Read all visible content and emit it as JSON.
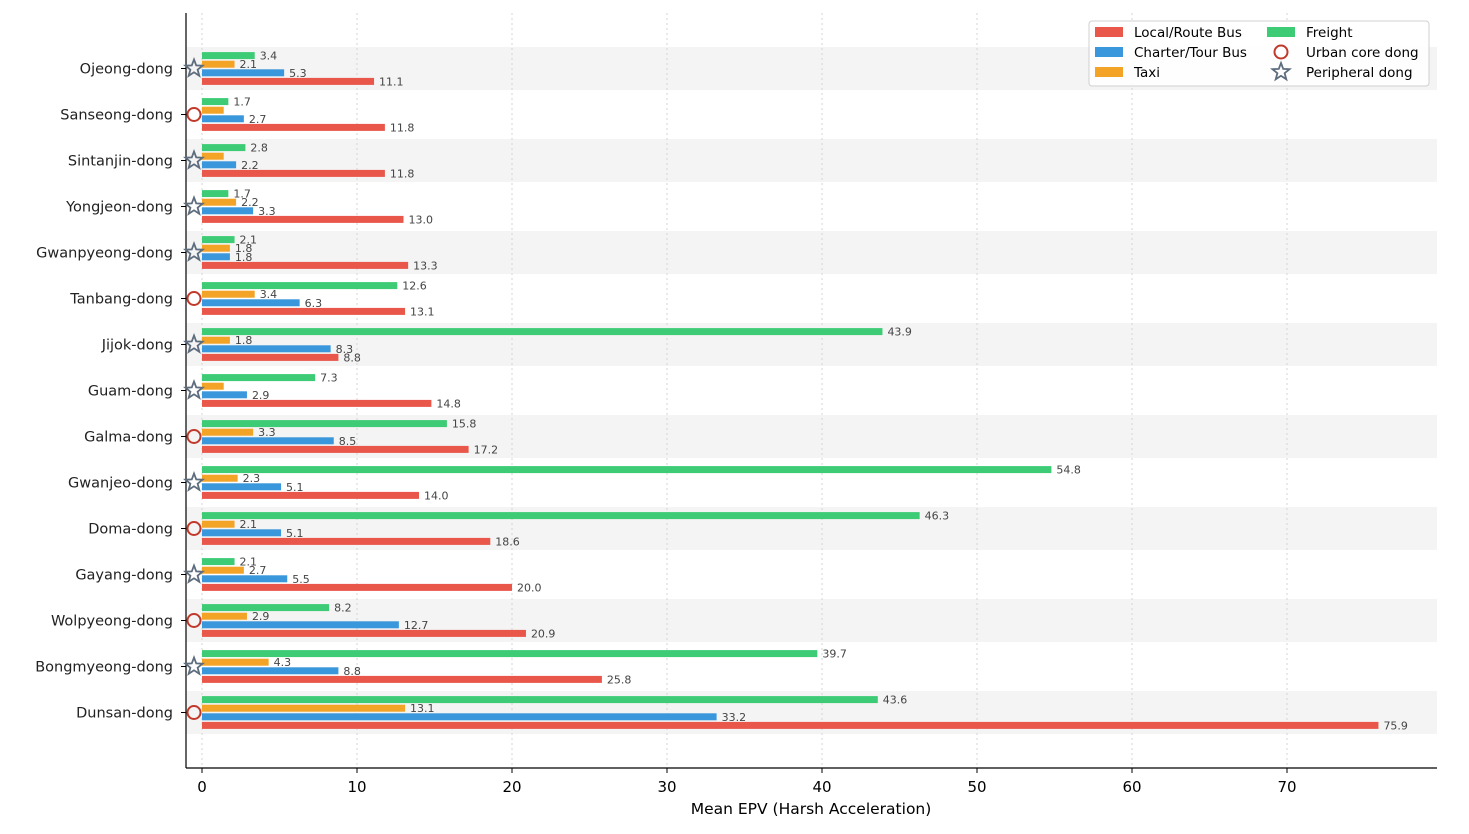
{
  "chart_data": {
    "type": "bar",
    "orientation": "horizontal",
    "xlabel": "Mean EPV (Harsh Acceleration)",
    "ylabel": "",
    "xlim": [
      -1,
      79
    ],
    "xticks": [
      0,
      10,
      20,
      30,
      40,
      50,
      60,
      70
    ],
    "grid": "vertical dotted",
    "legend_position": "top-right",
    "categories": [
      "Ojeong-dong",
      "Sanseong-dong",
      "Sintanjin-dong",
      "Yongjeon-dong",
      "Gwanpyeong-dong",
      "Tanbang-dong",
      "Jijok-dong",
      "Guam-dong",
      "Galma-dong",
      "Gwanjeo-dong",
      "Doma-dong",
      "Gayang-dong",
      "Wolpyeong-dong",
      "Bongmyeong-dong",
      "Dunsan-dong"
    ],
    "dong_type": [
      "peripheral",
      "urban",
      "peripheral",
      "peripheral",
      "peripheral",
      "urban",
      "peripheral",
      "peripheral",
      "urban",
      "peripheral",
      "urban",
      "peripheral",
      "urban",
      "peripheral",
      "urban"
    ],
    "series": [
      {
        "name": "Local/Route Bus",
        "color": "#e8574a",
        "values": [
          11.1,
          11.8,
          11.8,
          13.0,
          13.3,
          13.1,
          8.8,
          14.8,
          17.2,
          14.0,
          18.6,
          20.0,
          20.9,
          25.8,
          75.9
        ]
      },
      {
        "name": "Charter/Tour Bus",
        "color": "#3a97dc",
        "values": [
          5.3,
          2.7,
          2.2,
          3.3,
          1.8,
          6.3,
          8.3,
          2.9,
          8.5,
          5.1,
          5.1,
          5.5,
          12.7,
          8.8,
          33.2
        ]
      },
      {
        "name": "Taxi",
        "color": "#f3a325",
        "values": [
          2.1,
          1.4,
          1.4,
          2.2,
          1.8,
          3.4,
          1.8,
          1.4,
          3.3,
          2.3,
          2.1,
          2.7,
          2.9,
          4.3,
          13.1
        ],
        "labeled": [
          true,
          false,
          false,
          true,
          true,
          true,
          true,
          false,
          true,
          true,
          true,
          true,
          true,
          true,
          true
        ]
      },
      {
        "name": "Freight",
        "color": "#3ecb76",
        "values": [
          3.4,
          1.7,
          2.8,
          1.7,
          2.1,
          12.6,
          43.9,
          7.3,
          15.8,
          54.8,
          46.3,
          2.1,
          8.2,
          39.7,
          43.6
        ]
      }
    ],
    "markers": [
      {
        "name": "Urban core dong",
        "shape": "circle",
        "color": "#c0392b"
      },
      {
        "name": "Peripheral dong",
        "shape": "star",
        "color": "#5d6d7e"
      }
    ]
  }
}
